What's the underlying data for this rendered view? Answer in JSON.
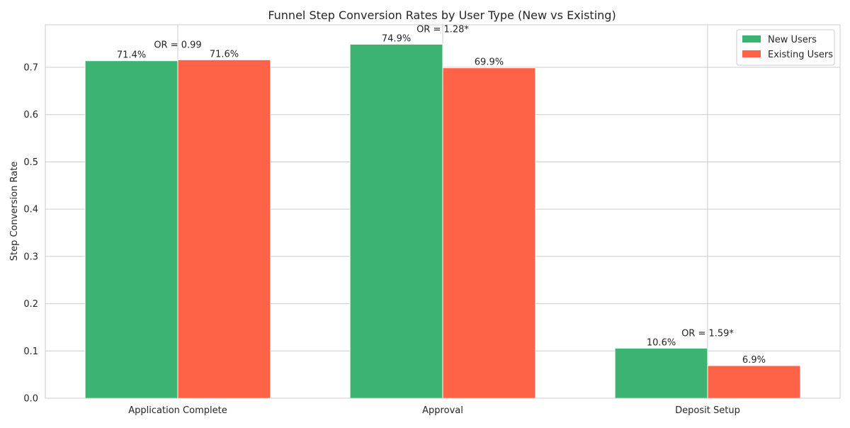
{
  "chart_data": {
    "type": "bar",
    "title": "Funnel Step Conversion Rates by User Type (New vs Existing)",
    "xlabel": "",
    "ylabel": "Step Conversion Rate",
    "categories": [
      "Application Complete",
      "Approval",
      "Deposit Setup"
    ],
    "series": [
      {
        "name": "New Users",
        "color": "#3cb371",
        "values": [
          0.714,
          0.749,
          0.106
        ],
        "labels": [
          "71.4%",
          "74.9%",
          "10.6%"
        ]
      },
      {
        "name": "Existing Users",
        "color": "#ff6347",
        "values": [
          0.716,
          0.699,
          0.069
        ],
        "labels": [
          "71.6%",
          "69.9%",
          "6.9%"
        ]
      }
    ],
    "annotations": [
      "OR = 0.99",
      "OR = 1.28*",
      "OR = 1.59*"
    ],
    "ylim": [
      0,
      0.79
    ],
    "yticks": [
      0.0,
      0.1,
      0.2,
      0.3,
      0.4,
      0.5,
      0.6,
      0.7
    ],
    "ytick_labels": [
      "0.0",
      "0.1",
      "0.2",
      "0.3",
      "0.4",
      "0.5",
      "0.6",
      "0.7"
    ],
    "grid": true,
    "legend_position": "top-right"
  }
}
